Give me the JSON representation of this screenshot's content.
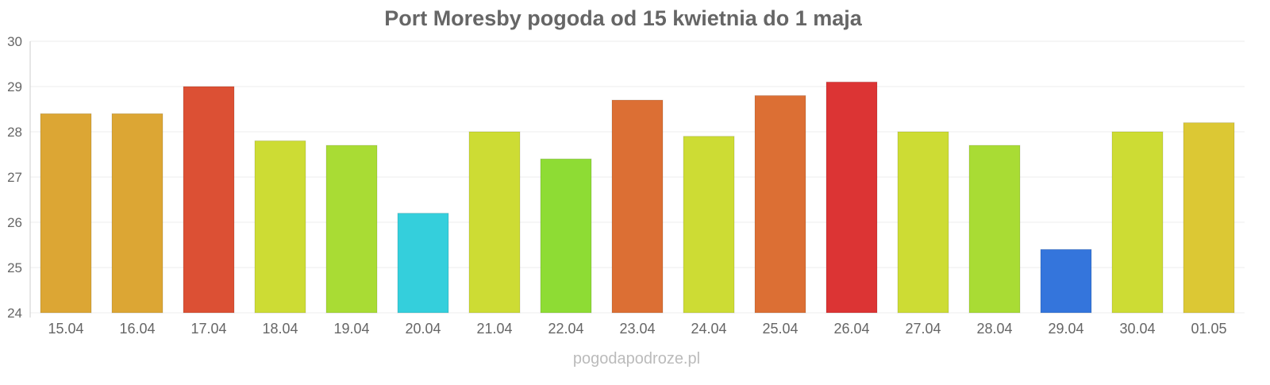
{
  "chart_data": {
    "type": "bar",
    "title": "Port Moresby pogoda od 15 kwietnia do 1 maja",
    "xlabel": "",
    "ylabel": "",
    "ylim": [
      24,
      30
    ],
    "yticks": [
      24,
      25,
      26,
      27,
      28,
      29,
      30
    ],
    "grid": true,
    "categories": [
      "15.04",
      "16.04",
      "17.04",
      "18.04",
      "19.04",
      "20.04",
      "21.04",
      "22.04",
      "23.04",
      "24.04",
      "25.04",
      "26.04",
      "27.04",
      "28.04",
      "29.04",
      "30.04",
      "01.05"
    ],
    "values": [
      28.4,
      28.4,
      29.0,
      27.8,
      27.7,
      26.2,
      28.0,
      27.4,
      28.7,
      27.9,
      28.8,
      29.1,
      28.0,
      27.7,
      25.4,
      28.0,
      28.2
    ],
    "colors": [
      "#dca634",
      "#dca634",
      "#dc5034",
      "#cddc34",
      "#a9dc34",
      "#34cfdc",
      "#cddc34",
      "#8edc34",
      "#dc6f34",
      "#cddc34",
      "#dc6f34",
      "#dc3434",
      "#cddc34",
      "#a9dc34",
      "#3475dc",
      "#cddc34",
      "#dcc834"
    ]
  },
  "watermark": "pogodapodroze.pl"
}
